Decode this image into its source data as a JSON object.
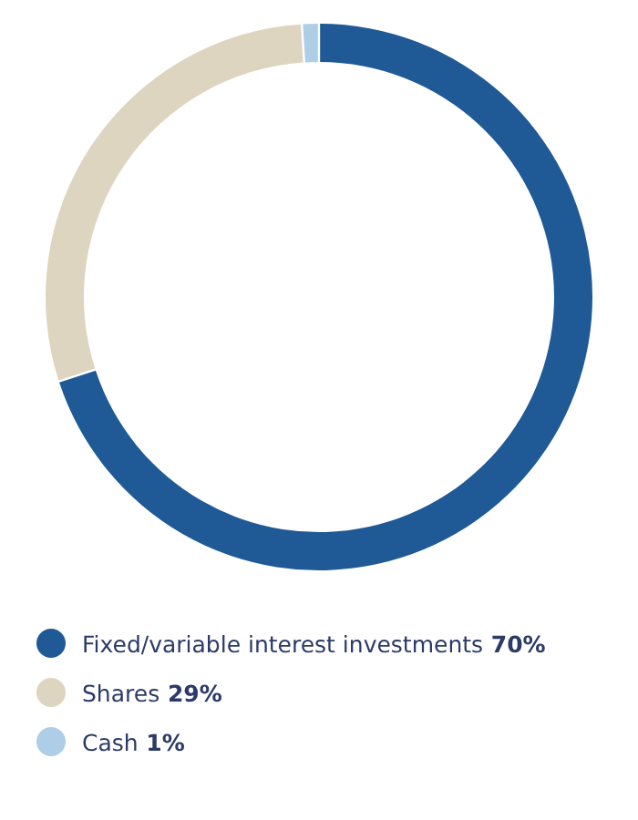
{
  "chart_data": {
    "type": "donut",
    "categories": [
      "Fixed/variable interest investments",
      "Shares",
      "Cash"
    ],
    "values": [
      70,
      29,
      1
    ],
    "value_labels": [
      "70%",
      "29%",
      "1%"
    ],
    "colors": [
      "#1f5a96",
      "#ddd5c0",
      "#aecde6"
    ],
    "legend": "bottom"
  }
}
